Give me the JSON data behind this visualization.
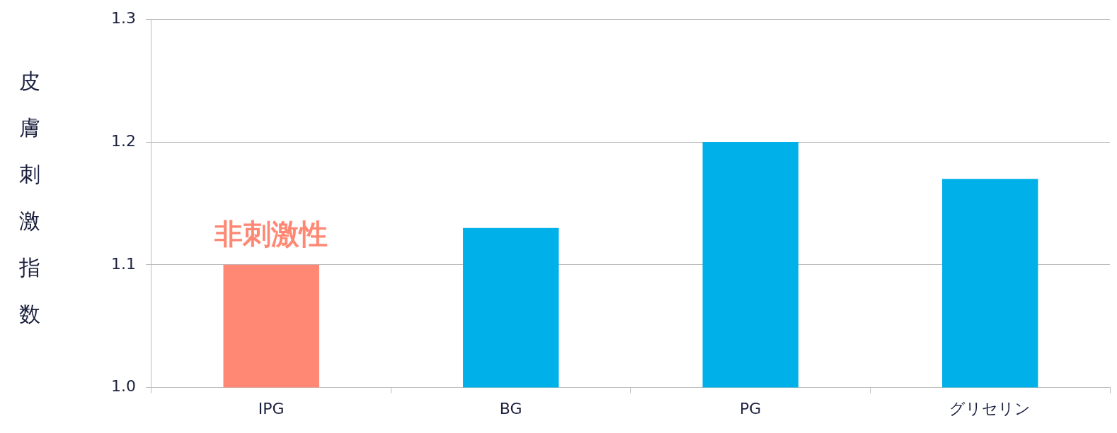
{
  "chart_data": {
    "type": "bar",
    "ylabel": "皮膚刺激指数",
    "categories": [
      "IPG",
      "BG",
      "PG",
      "グリセリン"
    ],
    "values": [
      1.1,
      1.13,
      1.2,
      1.17
    ],
    "colors": [
      "#ff8874",
      "#00b0e8",
      "#00b0e8",
      "#00b0e8"
    ],
    "ylim": [
      1.0,
      1.3
    ],
    "yticks": [
      {
        "value": 1.0,
        "label": "1.0"
      },
      1.1,
      1.2,
      1.3
    ],
    "grid": "y",
    "legend": false,
    "annotations": [
      {
        "text": "非刺激性",
        "x": "IPG",
        "y": 1.1
      }
    ]
  }
}
